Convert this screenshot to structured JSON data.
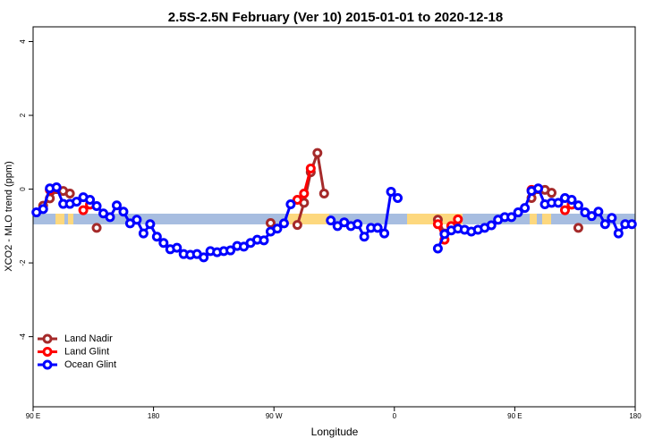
{
  "chart_data": {
    "type": "line",
    "title": "2.5S-2.5N February (Ver 10)   2015-01-01 to 2020-12-18",
    "xlabel": "Longitude",
    "ylabel": "XCO2 - MLO trend (ppm)",
    "xlim": [
      90,
      540
    ],
    "ylim": [
      -5.9,
      4.4
    ],
    "xticks": [
      {
        "value": 90,
        "label": "90 E"
      },
      {
        "value": 180,
        "label": "180"
      },
      {
        "value": 270,
        "label": "90 W"
      },
      {
        "value": 360,
        "label": "0"
      },
      {
        "value": 450,
        "label": "90 E"
      },
      {
        "value": 540,
        "label": "180"
      }
    ],
    "yticks": [
      -4,
      -2,
      0,
      2,
      4
    ],
    "legend": "bottomleft",
    "series": [
      {
        "name": "Land Nadir",
        "color": "#a52a2a",
        "x": [
          97.5,
          102.5,
          107.5,
          112.5,
          117.5,
          122.5,
          137.5,
          142.5,
          267.5,
          272.5,
          287.5,
          292.5,
          297.5,
          302.5,
          307.5,
          312.5,
          392.5,
          397.5,
          402.5,
          462.5,
          467.5,
          472.5,
          477.5,
          482.5,
          497.5
        ],
        "values": [
          -0.45,
          -0.25,
          0.0,
          -0.05,
          -0.12,
          null,
          -1.05,
          null,
          -0.92,
          null,
          -0.97,
          -0.37,
          0.46,
          0.98,
          -0.12,
          null,
          -0.83,
          -1.2,
          null,
          -0.24,
          0.0,
          -0.02,
          -0.1,
          null,
          -1.05
        ]
      },
      {
        "name": "Land Glint",
        "color": "#ff0000",
        "x": [
          102.5,
          107.5,
          127.5,
          132.5,
          137.5,
          287.5,
          292.5,
          297.5,
          302.5,
          392.5,
          397.5,
          402.5,
          407.5,
          412.5,
          462.5,
          467.5,
          487.5,
          492.5
        ],
        "values": [
          -0.02,
          null,
          -0.57,
          -0.42,
          null,
          -0.29,
          -0.12,
          0.56,
          null,
          -0.95,
          -1.37,
          -1.0,
          -0.82,
          null,
          -0.02,
          null,
          -0.57,
          -0.42
        ]
      },
      {
        "name": "Ocean Glint",
        "color": "#0000ff",
        "x": [
          92.5,
          97.5,
          102.5,
          107.5,
          112.5,
          117.5,
          122.5,
          127.5,
          132.5,
          137.5,
          142.5,
          147.5,
          152.5,
          157.5,
          162.5,
          167.5,
          172.5,
          177.5,
          182.5,
          187.5,
          192.5,
          197.5,
          202.5,
          207.5,
          212.5,
          217.5,
          222.5,
          227.5,
          232.5,
          237.5,
          242.5,
          247.5,
          252.5,
          257.5,
          262.5,
          267.5,
          272.5,
          277.5,
          282.5,
          287.5,
          312.5,
          317.5,
          322.5,
          327.5,
          332.5,
          337.5,
          342.5,
          347.5,
          352.5,
          357.5,
          362.5,
          367.5,
          392.5,
          397.5,
          402.5,
          407.5,
          412.5,
          417.5,
          422.5,
          427.5,
          432.5,
          437.5,
          442.5,
          447.5,
          452.5,
          457.5,
          462.5,
          467.5,
          472.5,
          477.5,
          482.5,
          487.5,
          492.5,
          497.5,
          502.5,
          507.5,
          512.5,
          517.5,
          522.5,
          527.5,
          532.5,
          537.5
        ],
        "values": [
          -0.63,
          -0.54,
          0.02,
          0.05,
          -0.4,
          -0.4,
          -0.34,
          -0.22,
          -0.29,
          -0.46,
          -0.66,
          -0.76,
          -0.44,
          -0.61,
          -0.93,
          -0.83,
          -1.2,
          -0.95,
          -1.29,
          -1.46,
          -1.63,
          -1.59,
          -1.76,
          -1.78,
          -1.76,
          -1.85,
          -1.68,
          -1.71,
          -1.68,
          -1.66,
          -1.54,
          -1.56,
          -1.46,
          -1.37,
          -1.39,
          -1.15,
          -1.07,
          -0.93,
          -0.41,
          null,
          -0.85,
          -1.0,
          -0.9,
          -1.0,
          -0.95,
          -1.29,
          -1.05,
          -1.05,
          -1.2,
          -0.07,
          -0.24,
          null,
          -1.61,
          -1.22,
          -1.12,
          -1.07,
          -1.1,
          -1.15,
          -1.1,
          -1.05,
          -0.98,
          -0.83,
          -0.76,
          -0.76,
          -0.63,
          -0.51,
          -0.05,
          0.02,
          -0.41,
          -0.37,
          -0.37,
          -0.24,
          -0.29,
          -0.44,
          -0.63,
          -0.73,
          -0.61,
          -0.95,
          -0.78,
          -1.2,
          -0.95,
          -0.95
        ]
      }
    ]
  }
}
